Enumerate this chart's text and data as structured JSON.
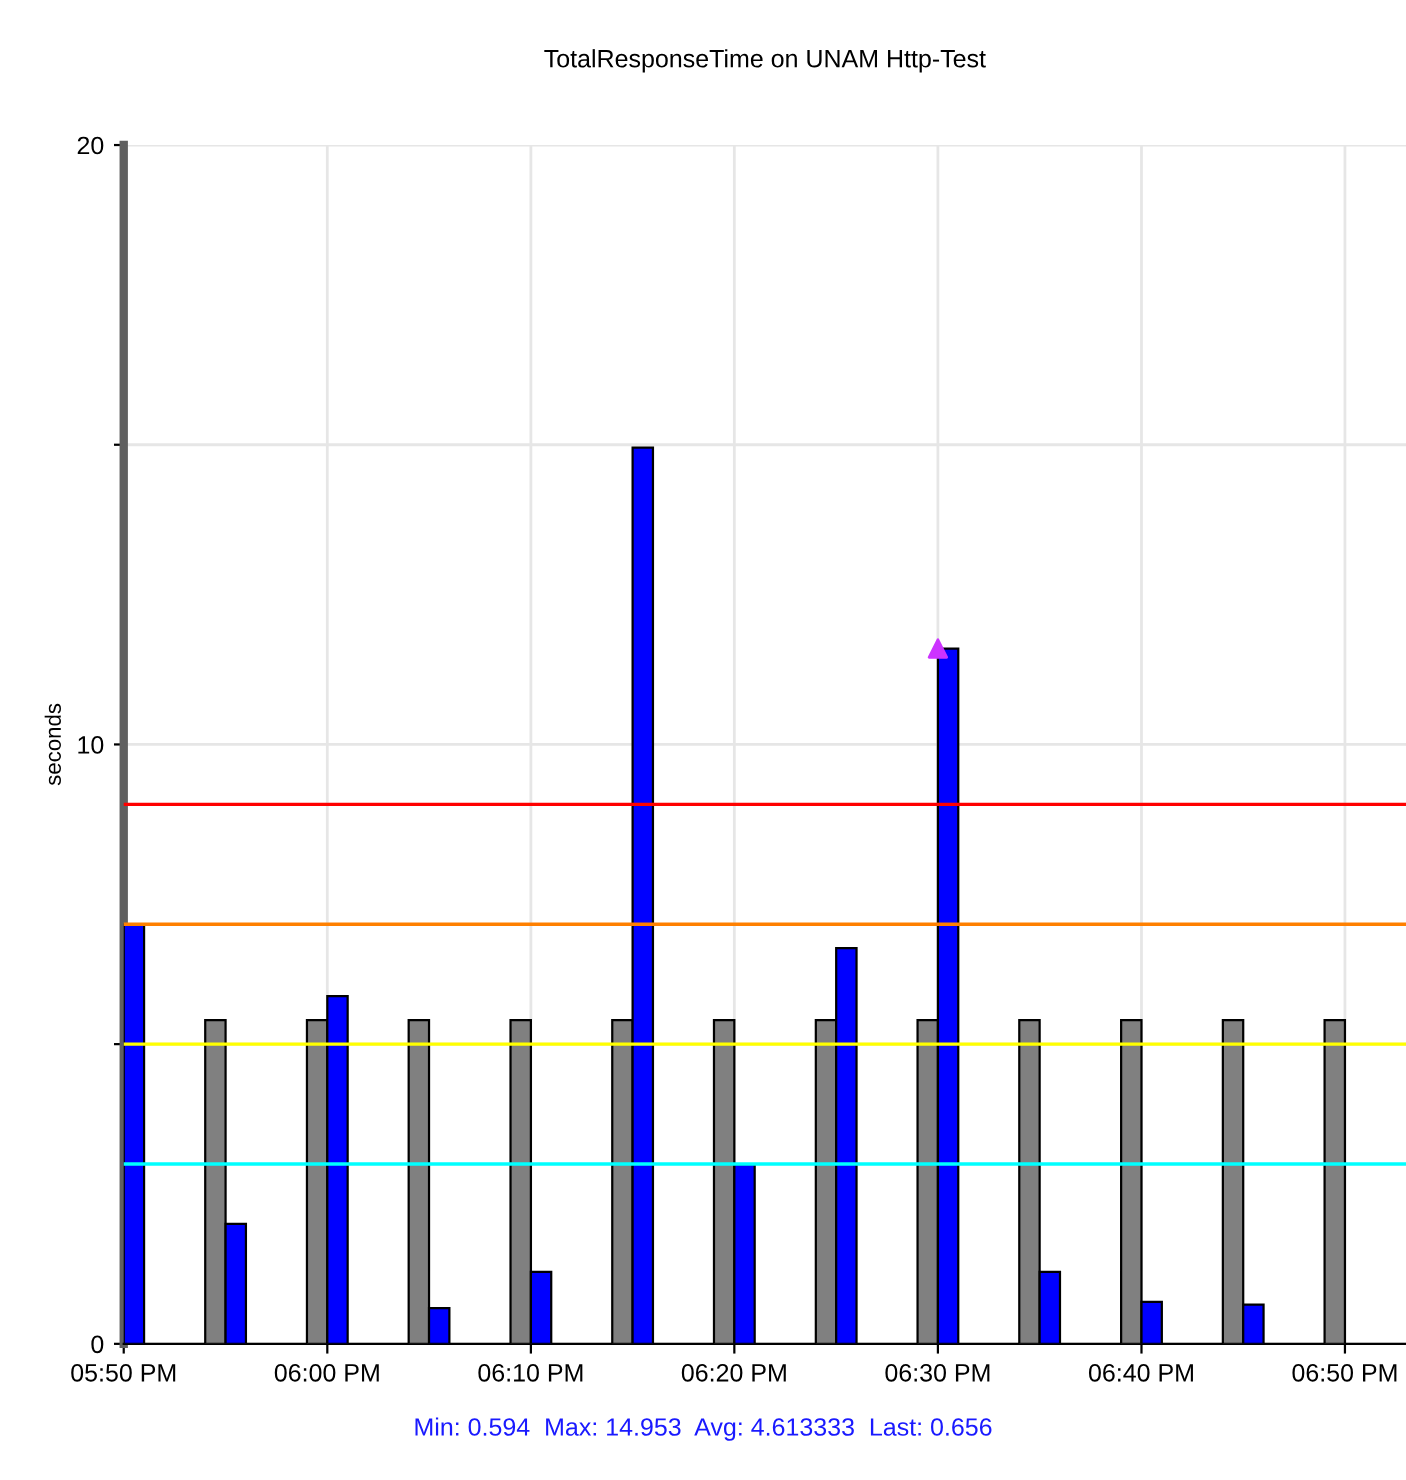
{
  "chart_data": {
    "type": "bar",
    "title": "TotalResponseTime on UNAM Http-Test",
    "ylabel": "seconds",
    "xlim": [
      17.8333,
      18.8833
    ],
    "xticks": [
      {
        "value": 17.8333,
        "label": "05:50 PM"
      },
      {
        "value": 18.0,
        "label": "06:00 PM"
      },
      {
        "value": 18.1667,
        "label": "06:10 PM"
      },
      {
        "value": 18.3333,
        "label": "06:20 PM"
      },
      {
        "value": 18.5,
        "label": "06:30 PM"
      },
      {
        "value": 18.6667,
        "label": "06:40 PM"
      },
      {
        "value": 18.8333,
        "label": "06:50 PM"
      }
    ],
    "ylim": [
      0,
      20
    ],
    "yticks": [
      0,
      {
        "value": 5,
        "label": null
      },
      10,
      {
        "value": 15,
        "label": null
      },
      20
    ],
    "grid": true,
    "series": [
      {
        "color": "#808080",
        "x": [
          17.9167,
          18.0,
          18.0833,
          18.1667,
          18.25,
          18.3333,
          18.4167,
          18.5,
          18.5833,
          18.6667,
          18.75,
          18.8333
        ],
        "values": [
          5.4,
          5.4,
          5.4,
          5.4,
          5.4,
          5.4,
          5.4,
          5.4,
          5.4,
          5.4,
          5.4,
          5.4
        ]
      },
      {
        "color": "#0000ff",
        "x": [
          17.8333,
          17.9167,
          18.0,
          18.0833,
          18.1667,
          18.25,
          18.3333,
          18.4167,
          18.5,
          18.5833,
          18.6667,
          18.75
        ],
        "values": [
          7.0,
          2.0,
          5.8,
          0.594,
          1.2,
          14.953,
          3.0,
          6.6,
          11.6,
          1.2,
          0.7,
          0.656
        ]
      },
      {
        "type": "scatter",
        "color": "#cc33ff",
        "marker": "triangle",
        "x": [
          18.5
        ],
        "values": [
          11.6
        ]
      }
    ],
    "ref_lines": [
      {
        "axis": "y",
        "value": 9,
        "color": "#ff0000"
      },
      {
        "axis": "y",
        "value": 7,
        "color": "#ff8000"
      },
      {
        "axis": "y",
        "value": 5,
        "color": "#ffff00"
      },
      {
        "axis": "y",
        "value": 3,
        "color": "#00ffff"
      }
    ],
    "annotations": [
      "Min: 0.594  Max: 14.953  Avg: 4.613333  Last: 0.656"
    ]
  }
}
